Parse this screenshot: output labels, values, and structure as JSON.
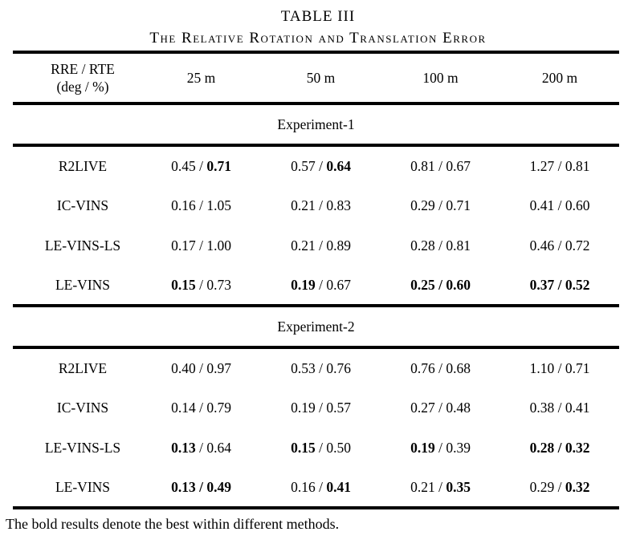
{
  "title": "TABLE III",
  "subtitle": "The Relative Rotation and Translation Error",
  "header": {
    "metric_line1": "RRE / RTE",
    "metric_line2": "(deg / %)",
    "columns": [
      "25 m",
      "50 m",
      "100 m",
      "200 m"
    ]
  },
  "separator": " / ",
  "sections": [
    {
      "label": "Experiment-1",
      "rows": [
        {
          "method": "R2LIVE",
          "cells": [
            {
              "rre": "0.45",
              "rre_bold": false,
              "rte": "0.71",
              "rte_bold": true
            },
            {
              "rre": "0.57",
              "rre_bold": false,
              "rte": "0.64",
              "rte_bold": true
            },
            {
              "rre": "0.81",
              "rre_bold": false,
              "rte": "0.67",
              "rte_bold": false
            },
            {
              "rre": "1.27",
              "rre_bold": false,
              "rte": "0.81",
              "rte_bold": false
            }
          ]
        },
        {
          "method": "IC-VINS",
          "cells": [
            {
              "rre": "0.16",
              "rre_bold": false,
              "rte": "1.05",
              "rte_bold": false
            },
            {
              "rre": "0.21",
              "rre_bold": false,
              "rte": "0.83",
              "rte_bold": false
            },
            {
              "rre": "0.29",
              "rre_bold": false,
              "rte": "0.71",
              "rte_bold": false
            },
            {
              "rre": "0.41",
              "rre_bold": false,
              "rte": "0.60",
              "rte_bold": false
            }
          ]
        },
        {
          "method": "LE-VINS-LS",
          "cells": [
            {
              "rre": "0.17",
              "rre_bold": false,
              "rte": "1.00",
              "rte_bold": false
            },
            {
              "rre": "0.21",
              "rre_bold": false,
              "rte": "0.89",
              "rte_bold": false
            },
            {
              "rre": "0.28",
              "rre_bold": false,
              "rte": "0.81",
              "rte_bold": false
            },
            {
              "rre": "0.46",
              "rre_bold": false,
              "rte": "0.72",
              "rte_bold": false
            }
          ]
        },
        {
          "method": "LE-VINS",
          "cells": [
            {
              "rre": "0.15",
              "rre_bold": true,
              "rte": "0.73",
              "rte_bold": false
            },
            {
              "rre": "0.19",
              "rre_bold": true,
              "rte": "0.67",
              "rte_bold": false
            },
            {
              "rre": "0.25",
              "rre_bold": true,
              "rte": "0.60",
              "rte_bold": true
            },
            {
              "rre": "0.37",
              "rre_bold": true,
              "rte": "0.52",
              "rte_bold": true
            }
          ]
        }
      ]
    },
    {
      "label": "Experiment-2",
      "rows": [
        {
          "method": "R2LIVE",
          "cells": [
            {
              "rre": "0.40",
              "rre_bold": false,
              "rte": "0.97",
              "rte_bold": false
            },
            {
              "rre": "0.53",
              "rre_bold": false,
              "rte": "0.76",
              "rte_bold": false
            },
            {
              "rre": "0.76",
              "rre_bold": false,
              "rte": "0.68",
              "rte_bold": false
            },
            {
              "rre": "1.10",
              "rre_bold": false,
              "rte": "0.71",
              "rte_bold": false
            }
          ]
        },
        {
          "method": "IC-VINS",
          "cells": [
            {
              "rre": "0.14",
              "rre_bold": false,
              "rte": "0.79",
              "rte_bold": false
            },
            {
              "rre": "0.19",
              "rre_bold": false,
              "rte": "0.57",
              "rte_bold": false
            },
            {
              "rre": "0.27",
              "rre_bold": false,
              "rte": "0.48",
              "rte_bold": false
            },
            {
              "rre": "0.38",
              "rre_bold": false,
              "rte": "0.41",
              "rte_bold": false
            }
          ]
        },
        {
          "method": "LE-VINS-LS",
          "cells": [
            {
              "rre": "0.13",
              "rre_bold": true,
              "rte": "0.64",
              "rte_bold": false
            },
            {
              "rre": "0.15",
              "rre_bold": true,
              "rte": "0.50",
              "rte_bold": false
            },
            {
              "rre": "0.19",
              "rre_bold": true,
              "rte": "0.39",
              "rte_bold": false
            },
            {
              "rre": "0.28",
              "rre_bold": true,
              "rte": "0.32",
              "rte_bold": true
            }
          ]
        },
        {
          "method": "LE-VINS",
          "cells": [
            {
              "rre": "0.13",
              "rre_bold": true,
              "rte": "0.49",
              "rte_bold": true
            },
            {
              "rre": "0.16",
              "rre_bold": false,
              "rte": "0.41",
              "rte_bold": true
            },
            {
              "rre": "0.21",
              "rre_bold": false,
              "rte": "0.35",
              "rte_bold": true
            },
            {
              "rre": "0.29",
              "rre_bold": false,
              "rte": "0.32",
              "rte_bold": true
            }
          ]
        }
      ]
    }
  ],
  "footnote": "The bold results denote the best within different methods."
}
